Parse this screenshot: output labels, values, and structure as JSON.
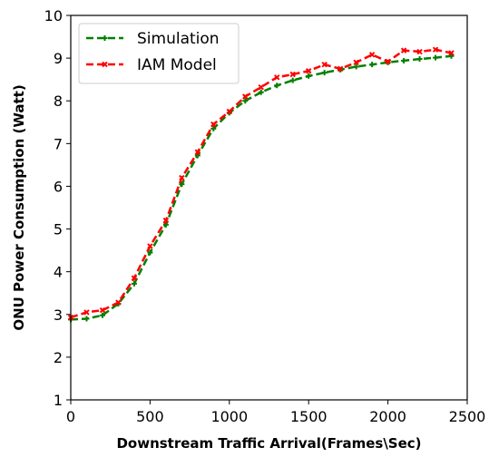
{
  "chart_data": {
    "type": "line",
    "title": "",
    "xlabel": "Downstream Traffic Arrival(Frames\\Sec)",
    "ylabel": "ONU Power Consumption (Watt)",
    "xlim": [
      0,
      2500
    ],
    "ylim": [
      1,
      10
    ],
    "xticks": [
      0,
      500,
      1000,
      1500,
      2000,
      2500
    ],
    "yticks": [
      1,
      2,
      3,
      4,
      5,
      6,
      7,
      8,
      9,
      10
    ],
    "grid": false,
    "legend_position": "top-left",
    "series": [
      {
        "name": "Simulation",
        "color": "#008000",
        "line_style": "dashed",
        "marker": "plus",
        "x": [
          0,
          100,
          200,
          300,
          400,
          500,
          600,
          700,
          800,
          900,
          1000,
          1100,
          1200,
          1300,
          1400,
          1500,
          1600,
          1700,
          1800,
          1900,
          2000,
          2100,
          2200,
          2300,
          2400
        ],
        "y": [
          2.88,
          2.9,
          2.98,
          3.25,
          3.72,
          4.45,
          5.1,
          6.05,
          6.72,
          7.35,
          7.72,
          8.0,
          8.2,
          8.36,
          8.48,
          8.58,
          8.66,
          8.73,
          8.8,
          8.85,
          8.9,
          8.94,
          8.98,
          9.01,
          9.05
        ]
      },
      {
        "name": "IAM Model",
        "color": "#ff0000",
        "line_style": "dashed",
        "marker": "x",
        "x": [
          0,
          100,
          200,
          300,
          400,
          500,
          600,
          700,
          800,
          900,
          1000,
          1100,
          1200,
          1300,
          1400,
          1500,
          1600,
          1700,
          1800,
          1900,
          2000,
          2100,
          2200,
          2300,
          2400
        ],
        "y": [
          2.93,
          3.05,
          3.1,
          3.28,
          3.85,
          4.6,
          5.2,
          6.2,
          6.8,
          7.45,
          7.75,
          8.1,
          8.32,
          8.55,
          8.62,
          8.7,
          8.85,
          8.75,
          8.9,
          9.08,
          8.92,
          9.18,
          9.15,
          9.2,
          9.12
        ]
      }
    ]
  }
}
